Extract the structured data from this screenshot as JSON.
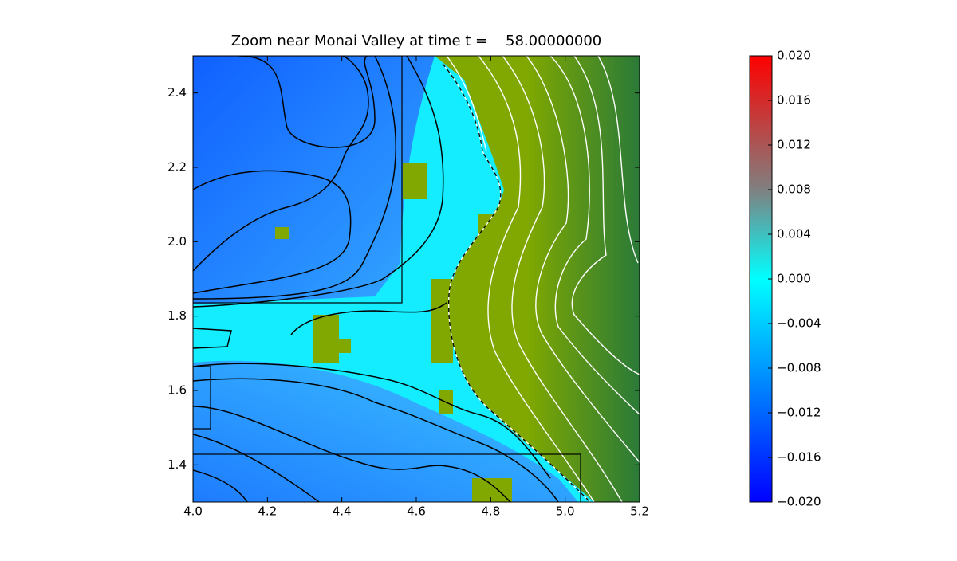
{
  "chart_data": {
    "type": "heatmap",
    "title": "Zoom near Monai Valley at time t =    58.00000000",
    "xlim": [
      4.0,
      5.2
    ],
    "xticks": [
      {
        "value": 4.0,
        "label": "4.0"
      },
      4.2,
      4.4,
      4.6,
      4.8,
      {
        "value": 5.0,
        "label": "5.0"
      },
      5.2
    ],
    "ylim": [
      1.3,
      2.5
    ],
    "yticks": [
      1.4,
      1.6,
      1.8,
      {
        "value": 2.0,
        "label": "2.0"
      },
      2.2,
      2.4
    ],
    "colorbar": {
      "colors": [
        "#0000ff",
        "#00ffff",
        "#808080",
        "#ff0000"
      ],
      "lim": [
        -0.02,
        0.02
      ],
      "ticks": [
        {
          "value": -0.02,
          "label": "−0.020"
        },
        {
          "value": -0.016,
          "label": "−0.016"
        },
        {
          "value": -0.012,
          "label": "−0.012"
        },
        {
          "value": -0.008,
          "label": "−0.008"
        },
        {
          "value": -0.004,
          "label": "−0.004"
        },
        {
          "value": 0,
          "label": "0.000"
        },
        {
          "value": 0.004,
          "label": "0.004"
        },
        {
          "value": 0.008,
          "label": "0.008"
        },
        {
          "value": 0.012,
          "label": "0.012"
        },
        {
          "value": 0.016,
          "label": "0.016"
        },
        {
          "value": 0.02,
          "label": "0.020"
        }
      ]
    }
  }
}
